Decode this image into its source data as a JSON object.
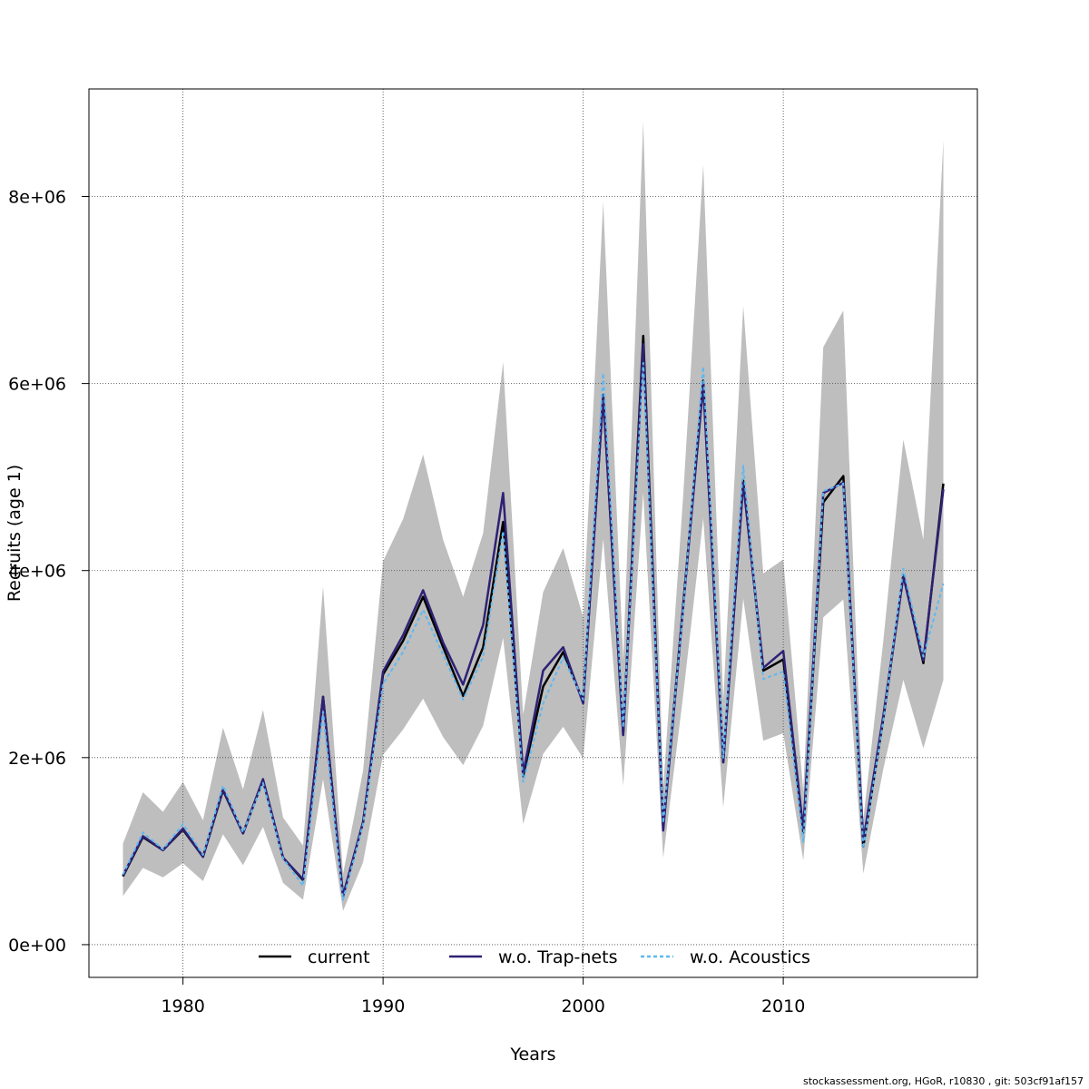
{
  "chart_data": {
    "type": "line",
    "title": "",
    "xlabel": "Years",
    "ylabel": "Recruits (age 1)",
    "xlim": [
      1975.3,
      2019.7
    ],
    "ylim": [
      -350000,
      9150000
    ],
    "x_ticks": [
      1980,
      1990,
      2000,
      2010
    ],
    "x_tick_labels": [
      "1980",
      "1990",
      "2000",
      "2010"
    ],
    "y_ticks": [
      0,
      2000000,
      4000000,
      6000000,
      8000000
    ],
    "y_tick_labels": [
      "0e+00",
      "2e+06",
      "4e+06",
      "6e+06",
      "8e+06"
    ],
    "grid": true,
    "legend_position": "bottom",
    "x": [
      1977,
      1978,
      1979,
      1980,
      1981,
      1982,
      1983,
      1984,
      1985,
      1986,
      1987,
      1988,
      1989,
      1990,
      1991,
      1992,
      1993,
      1994,
      1995,
      1996,
      1997,
      1998,
      1999,
      2000,
      2001,
      2002,
      2003,
      2004,
      2005,
      2006,
      2007,
      2008,
      2009,
      2010,
      2011,
      2012,
      2013,
      2014,
      2015,
      2016,
      2017,
      2018
    ],
    "confidence_band": {
      "color": "#bebebe",
      "lower": [
        520000,
        820000,
        720000,
        870000,
        680000,
        1180000,
        850000,
        1260000,
        660000,
        480000,
        1770000,
        360000,
        880000,
        2030000,
        2300000,
        2630000,
        2220000,
        1920000,
        2340000,
        3280000,
        1290000,
        2040000,
        2330000,
        1990000,
        4340000,
        1700000,
        4830000,
        930000,
        2670000,
        4560000,
        1470000,
        3700000,
        2180000,
        2260000,
        900000,
        3500000,
        3690000,
        760000,
        1880000,
        2830000,
        2100000,
        2830000
      ],
      "upper": [
        1080000,
        1630000,
        1420000,
        1740000,
        1330000,
        2320000,
        1660000,
        2510000,
        1360000,
        1060000,
        3830000,
        760000,
        1860000,
        4100000,
        4550000,
        5240000,
        4330000,
        3720000,
        4400000,
        6230000,
        2460000,
        3770000,
        4240000,
        3500000,
        7940000,
        3050000,
        8800000,
        1680000,
        4810000,
        8340000,
        2610000,
        6830000,
        3970000,
        4120000,
        1640000,
        6390000,
        6780000,
        1340000,
        3250000,
        5400000,
        4330000,
        8600000
      ]
    },
    "series": [
      {
        "name": "current",
        "color": "#000000",
        "dash": "",
        "width": 2.5,
        "values": [
          730000,
          1150000,
          1010000,
          1230000,
          940000,
          1650000,
          1190000,
          1760000,
          930000,
          690000,
          2650000,
          520000,
          1310000,
          2890000,
          3250000,
          3720000,
          3180000,
          2660000,
          3180000,
          4520000,
          1800000,
          2760000,
          3130000,
          2600000,
          5880000,
          2250000,
          6510000,
          1250000,
          3640000,
          6030000,
          1950000,
          4960000,
          2930000,
          3050000,
          1200000,
          4730000,
          5010000,
          1050000,
          2420000,
          3950000,
          3010000,
          4930000
        ]
      },
      {
        "name": "w.o. Trap-nets",
        "color": "#2e2175",
        "dash": "",
        "width": 2.5,
        "values": [
          740000,
          1160000,
          1010000,
          1240000,
          940000,
          1660000,
          1190000,
          1770000,
          930000,
          700000,
          2650000,
          520000,
          1310000,
          2920000,
          3310000,
          3790000,
          3230000,
          2780000,
          3420000,
          4830000,
          1830000,
          2930000,
          3180000,
          2580000,
          5870000,
          2240000,
          6420000,
          1220000,
          3620000,
          5990000,
          1950000,
          4940000,
          2960000,
          3140000,
          1230000,
          4830000,
          4940000,
          1110000,
          2450000,
          3940000,
          3040000,
          4870000
        ]
      },
      {
        "name": "w.o. Acoustics",
        "color": "#5fb8f0",
        "dash": "4,3",
        "width": 2,
        "values": [
          750000,
          1200000,
          1020000,
          1290000,
          960000,
          1700000,
          1200000,
          1730000,
          920000,
          630000,
          2490000,
          480000,
          1290000,
          2790000,
          3130000,
          3580000,
          3100000,
          2620000,
          3080000,
          4420000,
          1740000,
          2580000,
          3070000,
          2620000,
          6110000,
          2320000,
          6220000,
          1300000,
          3600000,
          6180000,
          2000000,
          5120000,
          2840000,
          2920000,
          1100000,
          4850000,
          4930000,
          1030000,
          2400000,
          4020000,
          3080000,
          3860000
        ]
      }
    ],
    "legend": [
      {
        "label": "current",
        "color": "#000000",
        "dash": ""
      },
      {
        "label": "w.o. Trap-nets",
        "color": "#2e2175",
        "dash": ""
      },
      {
        "label": "w.o. Acoustics",
        "color": "#5fb8f0",
        "dash": "4,3"
      }
    ]
  },
  "footer": "stockassessment.org, HGoR, r10830 , git: 503cf91af157"
}
